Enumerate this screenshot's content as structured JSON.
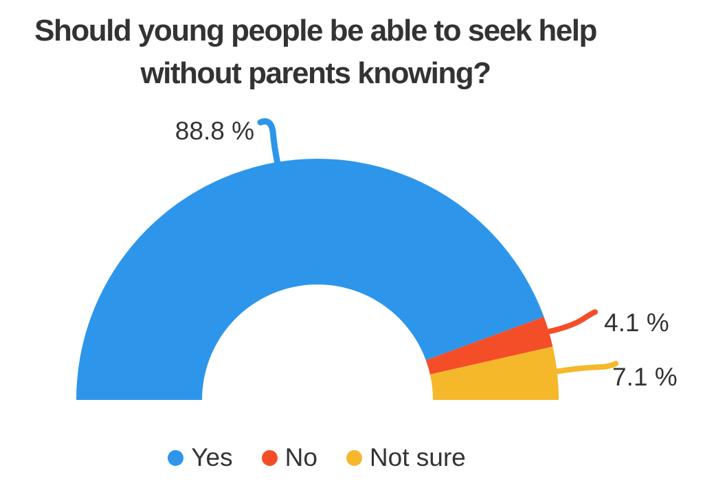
{
  "chart_data": {
    "type": "donut",
    "variant": "half-donut",
    "title": "Should young people be able to seek help without parents knowing?",
    "unit": "%",
    "total": 100,
    "segments": [
      {
        "label": "Yes",
        "value": 88.8,
        "display_label": "88.8 %",
        "color": "#2d96ea"
      },
      {
        "label": "No",
        "value": 4.1,
        "display_label": "4.1 %",
        "color": "#f44e28"
      },
      {
        "label": "Not sure",
        "value": 7.1,
        "display_label": "7.1 %",
        "color": "#f5b82b"
      }
    ],
    "legend_position": "bottom",
    "colors": {
      "background": "#ffffff",
      "text": "#333333"
    }
  }
}
